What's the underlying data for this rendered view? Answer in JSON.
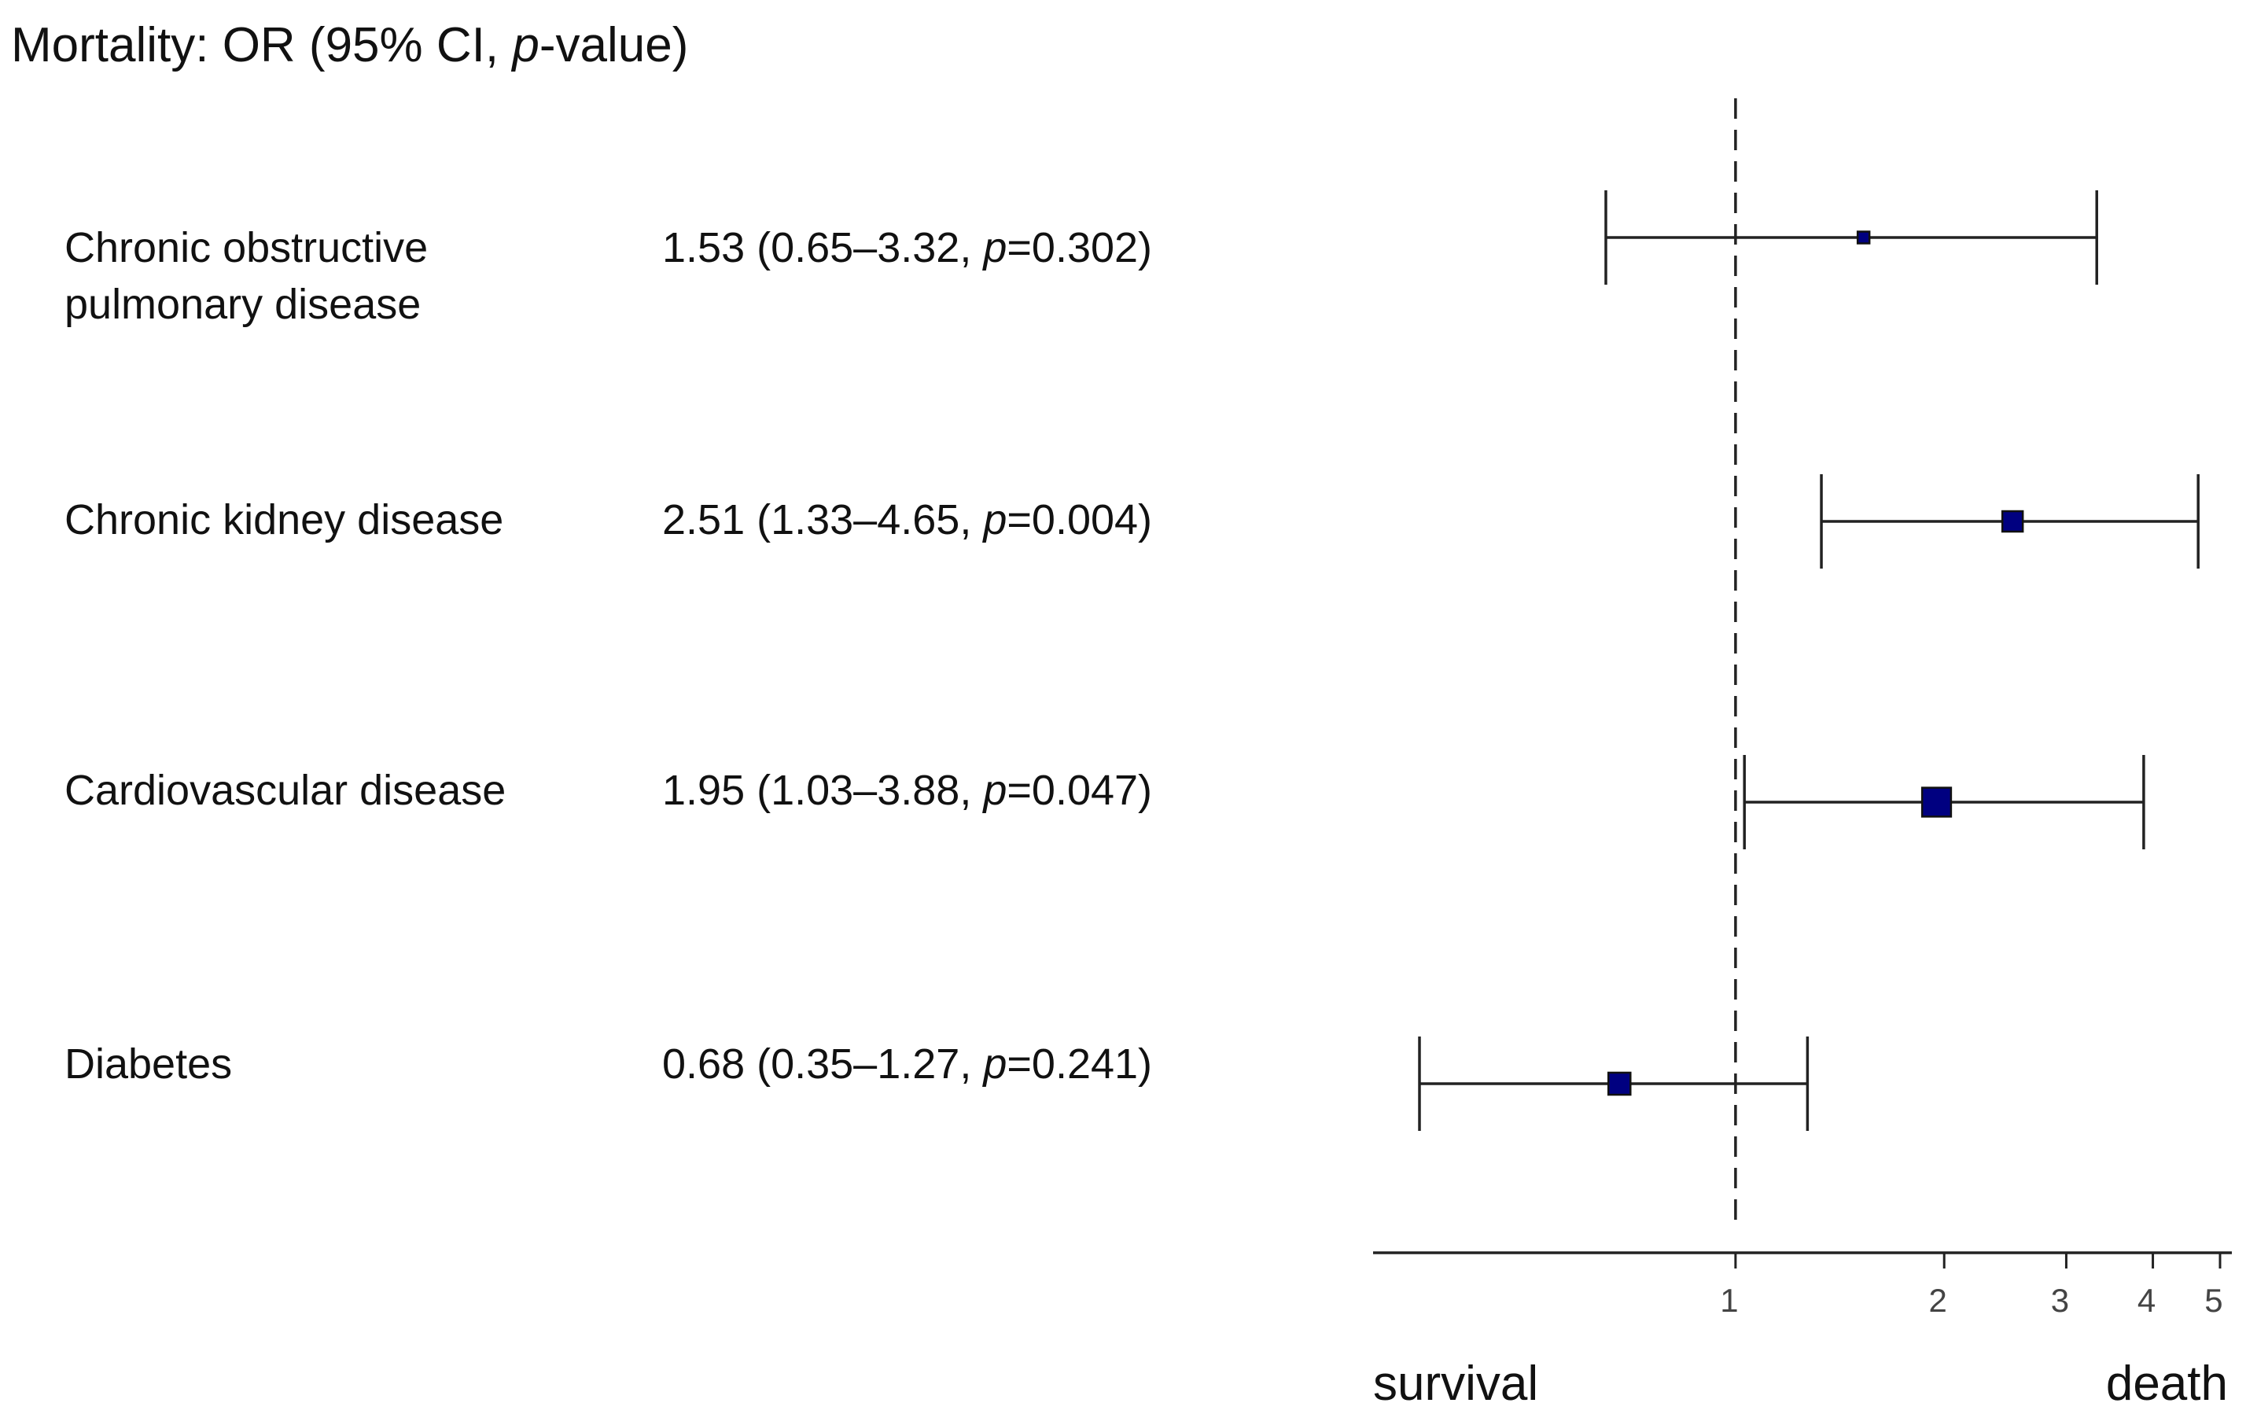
{
  "chart_data": {
    "type": "forest",
    "title": {
      "prefix": "Mortality: OR (95% CI, ",
      "p_italic": "p",
      "suffix": "-value)"
    },
    "x_scale": "log",
    "xlim": [
      0.3,
      5.2
    ],
    "x_ticks": [
      1,
      2,
      3,
      4,
      5
    ],
    "x_tick_labels": [
      "1",
      "2",
      "3",
      "4",
      "5"
    ],
    "reference_line": 1,
    "direction_labels": {
      "left": "survival",
      "right": "death"
    },
    "marker_color": "#000080",
    "rows": [
      {
        "label_lines": [
          "Chronic obstructive",
          "pulmonary disease"
        ],
        "or": 1.53,
        "ci_low": 0.65,
        "ci_high": 3.32,
        "stat_prefix": "1.53 (0.65–3.32, ",
        "p_italic": "p",
        "stat_suffix": "=0.302)",
        "weight": 1
      },
      {
        "label_lines": [
          "Chronic kidney disease"
        ],
        "or": 2.51,
        "ci_low": 1.33,
        "ci_high": 4.65,
        "stat_prefix": "2.51 (1.33–4.65, ",
        "p_italic": "p",
        "stat_suffix": "=0.004)",
        "weight": 3
      },
      {
        "label_lines": [
          "Cardiovascular disease"
        ],
        "or": 1.95,
        "ci_low": 1.03,
        "ci_high": 3.88,
        "stat_prefix": "1.95 (1.03–3.88, ",
        "p_italic": "p",
        "stat_suffix": "=0.047)",
        "weight": 6
      },
      {
        "label_lines": [
          "Diabetes"
        ],
        "or": 0.68,
        "ci_low": 0.35,
        "ci_high": 1.27,
        "stat_prefix": "0.68 (0.35–1.27, ",
        "p_italic": "p",
        "stat_suffix": "=0.241)",
        "weight": 3.5
      }
    ]
  }
}
